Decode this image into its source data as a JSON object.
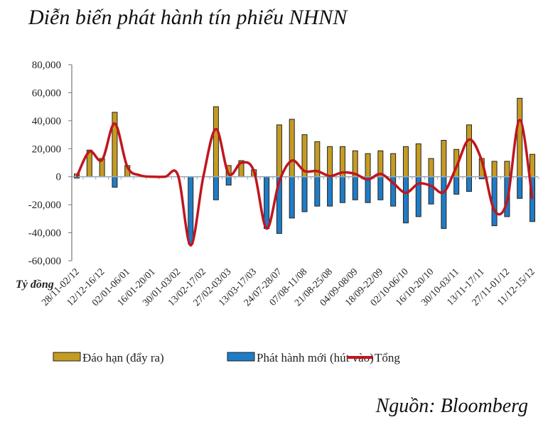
{
  "chart_data": {
    "type": "bar",
    "title": "Diễn biến phát hành tín phiếu NHNN",
    "ylabel": "Tỷ đồng",
    "source": "Nguồn: Bloomberg",
    "ylim": [
      -60000,
      80000
    ],
    "yticks": [
      80000,
      60000,
      40000,
      20000,
      0,
      -20000,
      -40000,
      -60000
    ],
    "ytick_labels": [
      "80,000",
      "60,000",
      "40,000",
      "20,000",
      "0",
      "-20,000",
      "-40,000",
      "-60,000"
    ],
    "grid": false,
    "legend_position": "bottom",
    "categories": [
      "28/11-02/12",
      "",
      "12/12-16/12",
      "",
      "02/01-06/01",
      "",
      "16/01-20/01",
      "",
      "30/01-03/02",
      "",
      "13/02-17/02",
      "",
      "27/02-03/03",
      "",
      "13/03-17/03",
      "",
      "24/07-28/07",
      "",
      "07/08-11/08",
      "",
      "21/08-25/08",
      "",
      "04/09-08/09",
      "",
      "18/09-22/09",
      "",
      "02/10-06/10",
      "",
      "16/10-20/10",
      "",
      "30/10-03/11",
      "",
      "13/11-17/11",
      "",
      "27/11-01/12",
      "",
      "11/12-15/12"
    ],
    "series": [
      {
        "name": "Đáo hạn (đẩy ra)",
        "type": "bar",
        "color": "#C59B22",
        "values": [
          2000,
          19000,
          13000,
          46000,
          8000,
          0,
          0,
          0,
          0,
          0,
          0,
          50000,
          8000,
          11500,
          5000,
          0,
          37000,
          41000,
          30000,
          25000,
          21500,
          21500,
          18500,
          16500,
          18500,
          16500,
          21500,
          23500,
          13000,
          26000,
          19500,
          37000,
          13000,
          11000,
          11000,
          56000,
          16000
        ]
      },
      {
        "name": "Phát hành mới  (hút vào)",
        "type": "bar",
        "color": "#1F7CC6",
        "values": [
          -1000,
          0,
          0,
          -7500,
          0,
          0,
          0,
          0,
          0,
          -48000,
          0,
          -16500,
          -6000,
          0,
          0,
          -37000,
          -40500,
          -29500,
          -25000,
          -21000,
          -21000,
          -18500,
          -16500,
          -18500,
          -16500,
          -21000,
          -33000,
          -28500,
          -19500,
          -37000,
          -12500,
          -10500,
          -1500,
          -35000,
          -28500,
          -15500,
          -32000
        ]
      },
      {
        "name": "Tổng",
        "type": "line",
        "color": "#C0161E",
        "values": [
          0,
          18000,
          12000,
          38000,
          7000,
          1000,
          0,
          0,
          1000,
          -49000,
          0,
          34000,
          2000,
          10000,
          4000,
          -37000,
          -3500,
          11500,
          4000,
          4000,
          500,
          3000,
          2000,
          -2000,
          2000,
          -4500,
          -11500,
          -5000,
          -6500,
          -11000,
          7000,
          26500,
          11500,
          -24000,
          -17500,
          40500,
          -16000
        ]
      }
    ]
  }
}
